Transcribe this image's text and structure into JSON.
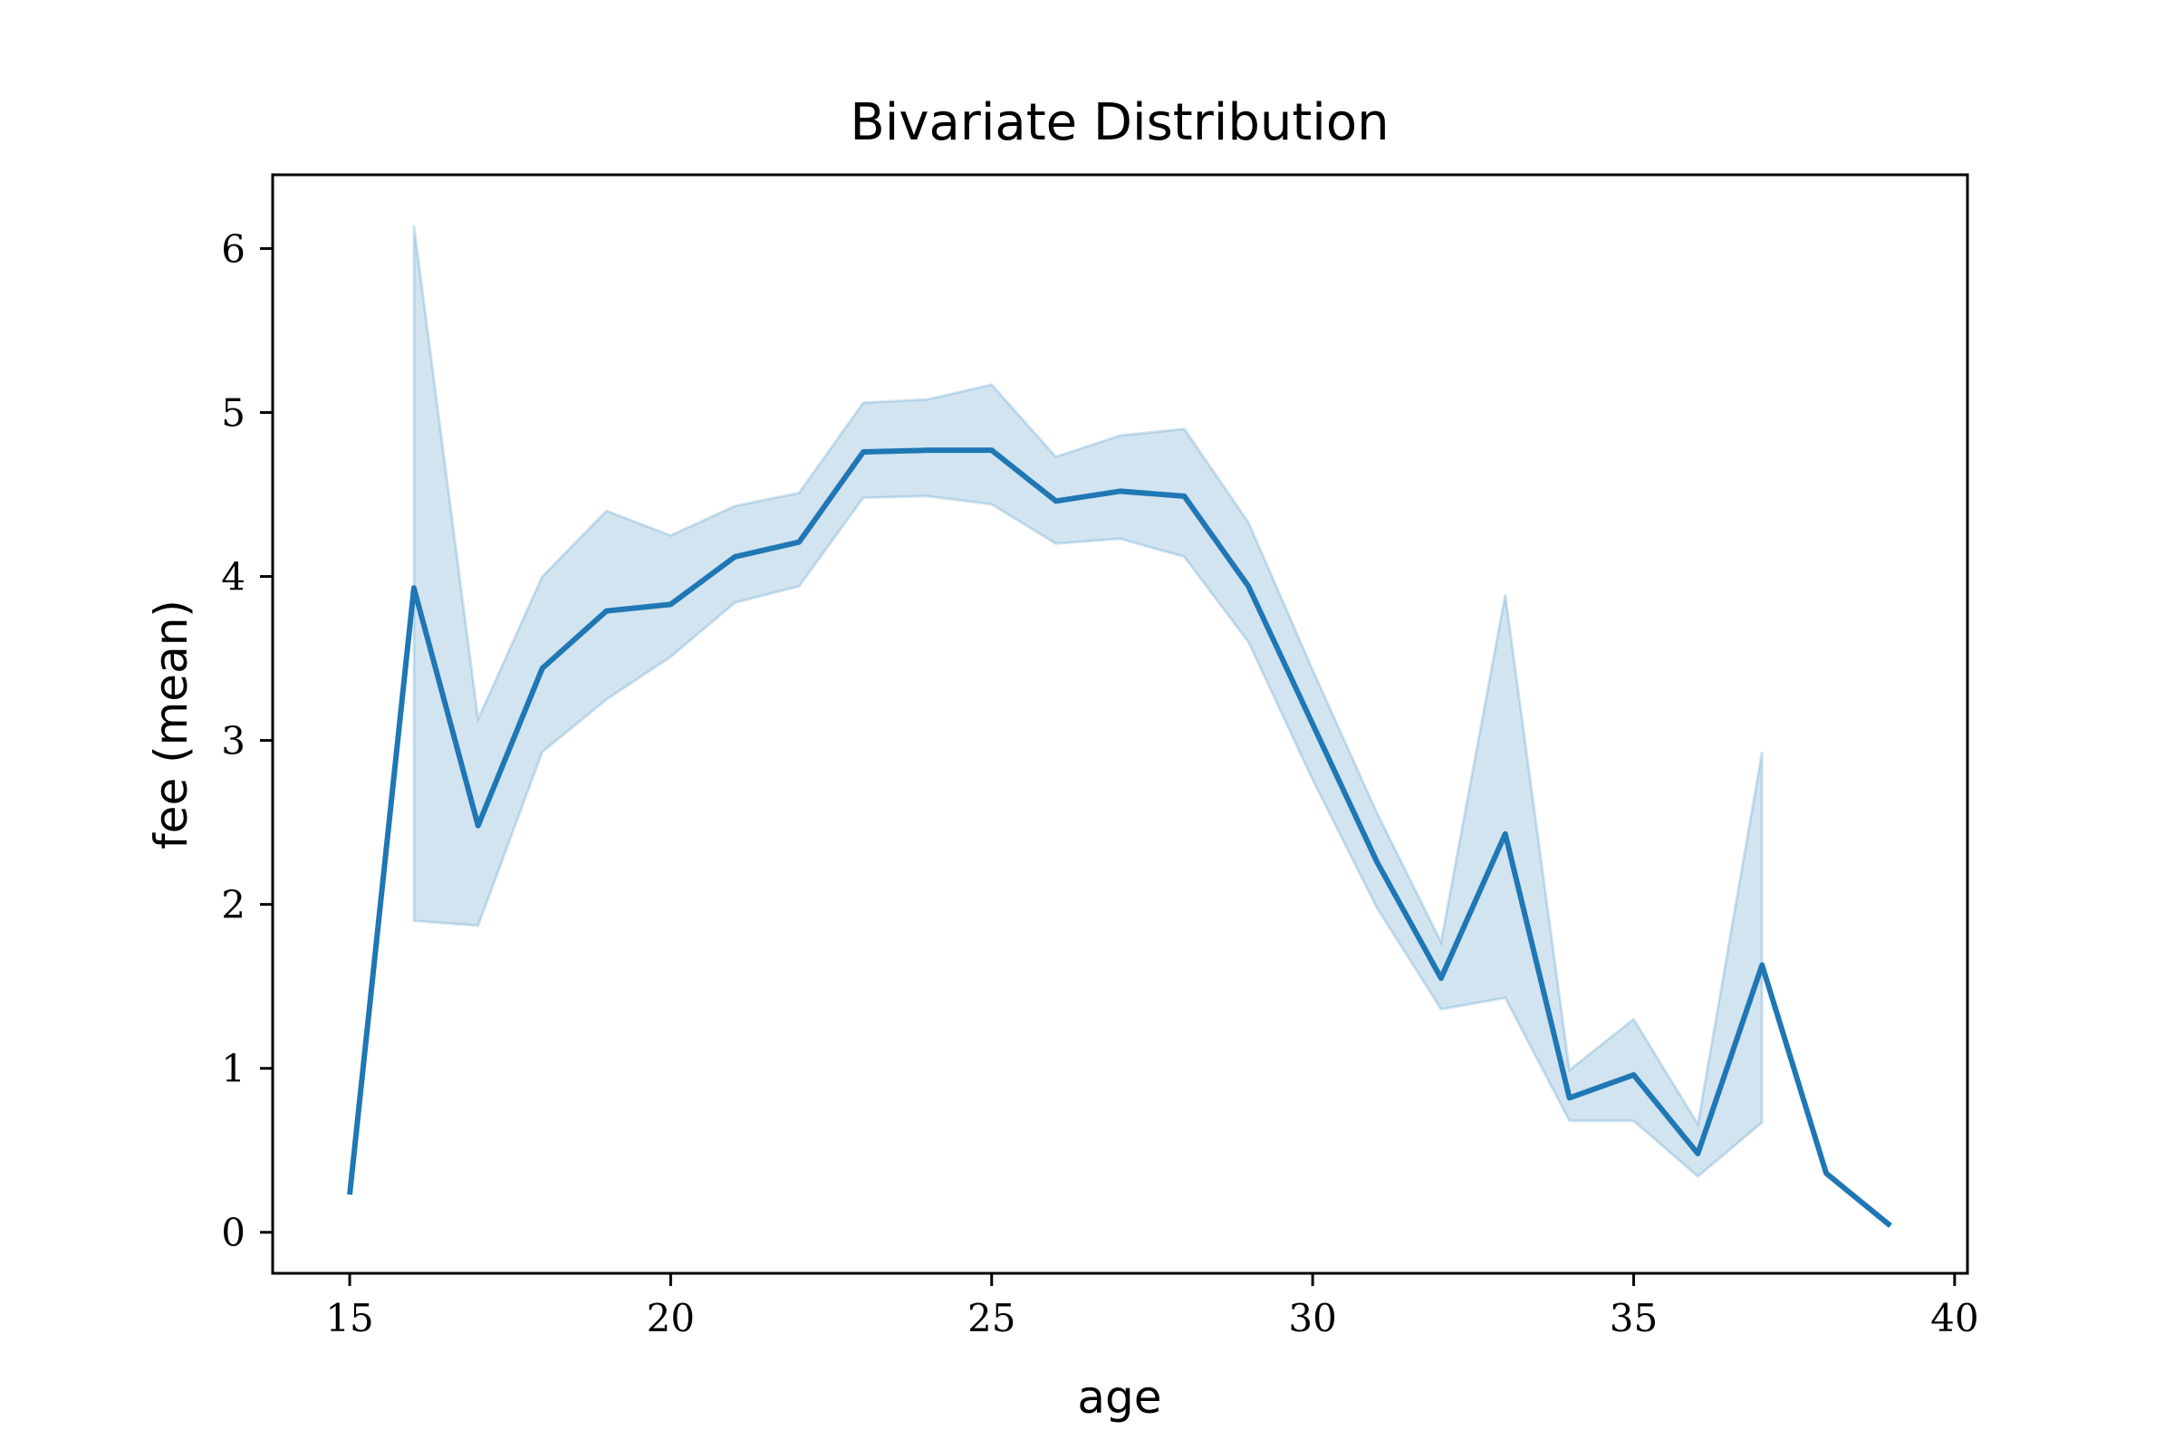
{
  "chart_data": {
    "type": "line",
    "title": "Bivariate Distribution",
    "xlabel": "age",
    "ylabel": "fee (mean)",
    "xlim": [
      13.8,
      40.2
    ],
    "ylim": [
      -0.25,
      6.45
    ],
    "xticks": [
      15,
      20,
      25,
      30,
      35,
      40
    ],
    "yticks": [
      0,
      1,
      2,
      3,
      4,
      5,
      6
    ],
    "grid": false,
    "colors": {
      "line": "#1f77b4",
      "band": "#1f77b4"
    },
    "series": [
      {
        "x": [
          15,
          16,
          17,
          18,
          19,
          20,
          21,
          22,
          23,
          24,
          25,
          26,
          27,
          28,
          29,
          30,
          31,
          32,
          33,
          34,
          35,
          36,
          37,
          38,
          39
        ],
        "y": [
          0.23,
          3.93,
          2.48,
          3.44,
          3.79,
          3.83,
          4.12,
          4.21,
          4.76,
          4.77,
          4.77,
          4.46,
          4.52,
          4.49,
          3.94,
          3.1,
          2.26,
          1.55,
          2.43,
          0.82,
          0.96,
          0.48,
          1.63,
          0.36,
          0.04
        ],
        "ci_lower": [
          null,
          1.9,
          1.87,
          2.93,
          3.25,
          3.51,
          3.84,
          3.94,
          4.48,
          4.49,
          4.44,
          4.2,
          4.23,
          4.12,
          3.6,
          2.76,
          1.98,
          1.36,
          1.43,
          0.68,
          0.68,
          0.34,
          0.67,
          null,
          null
        ],
        "ci_upper": [
          null,
          6.14,
          3.13,
          4.0,
          4.4,
          4.25,
          4.43,
          4.51,
          5.06,
          5.08,
          5.17,
          4.73,
          4.86,
          4.9,
          4.33,
          3.43,
          2.56,
          1.77,
          3.89,
          0.99,
          1.3,
          0.66,
          2.93,
          null,
          null
        ]
      }
    ]
  }
}
